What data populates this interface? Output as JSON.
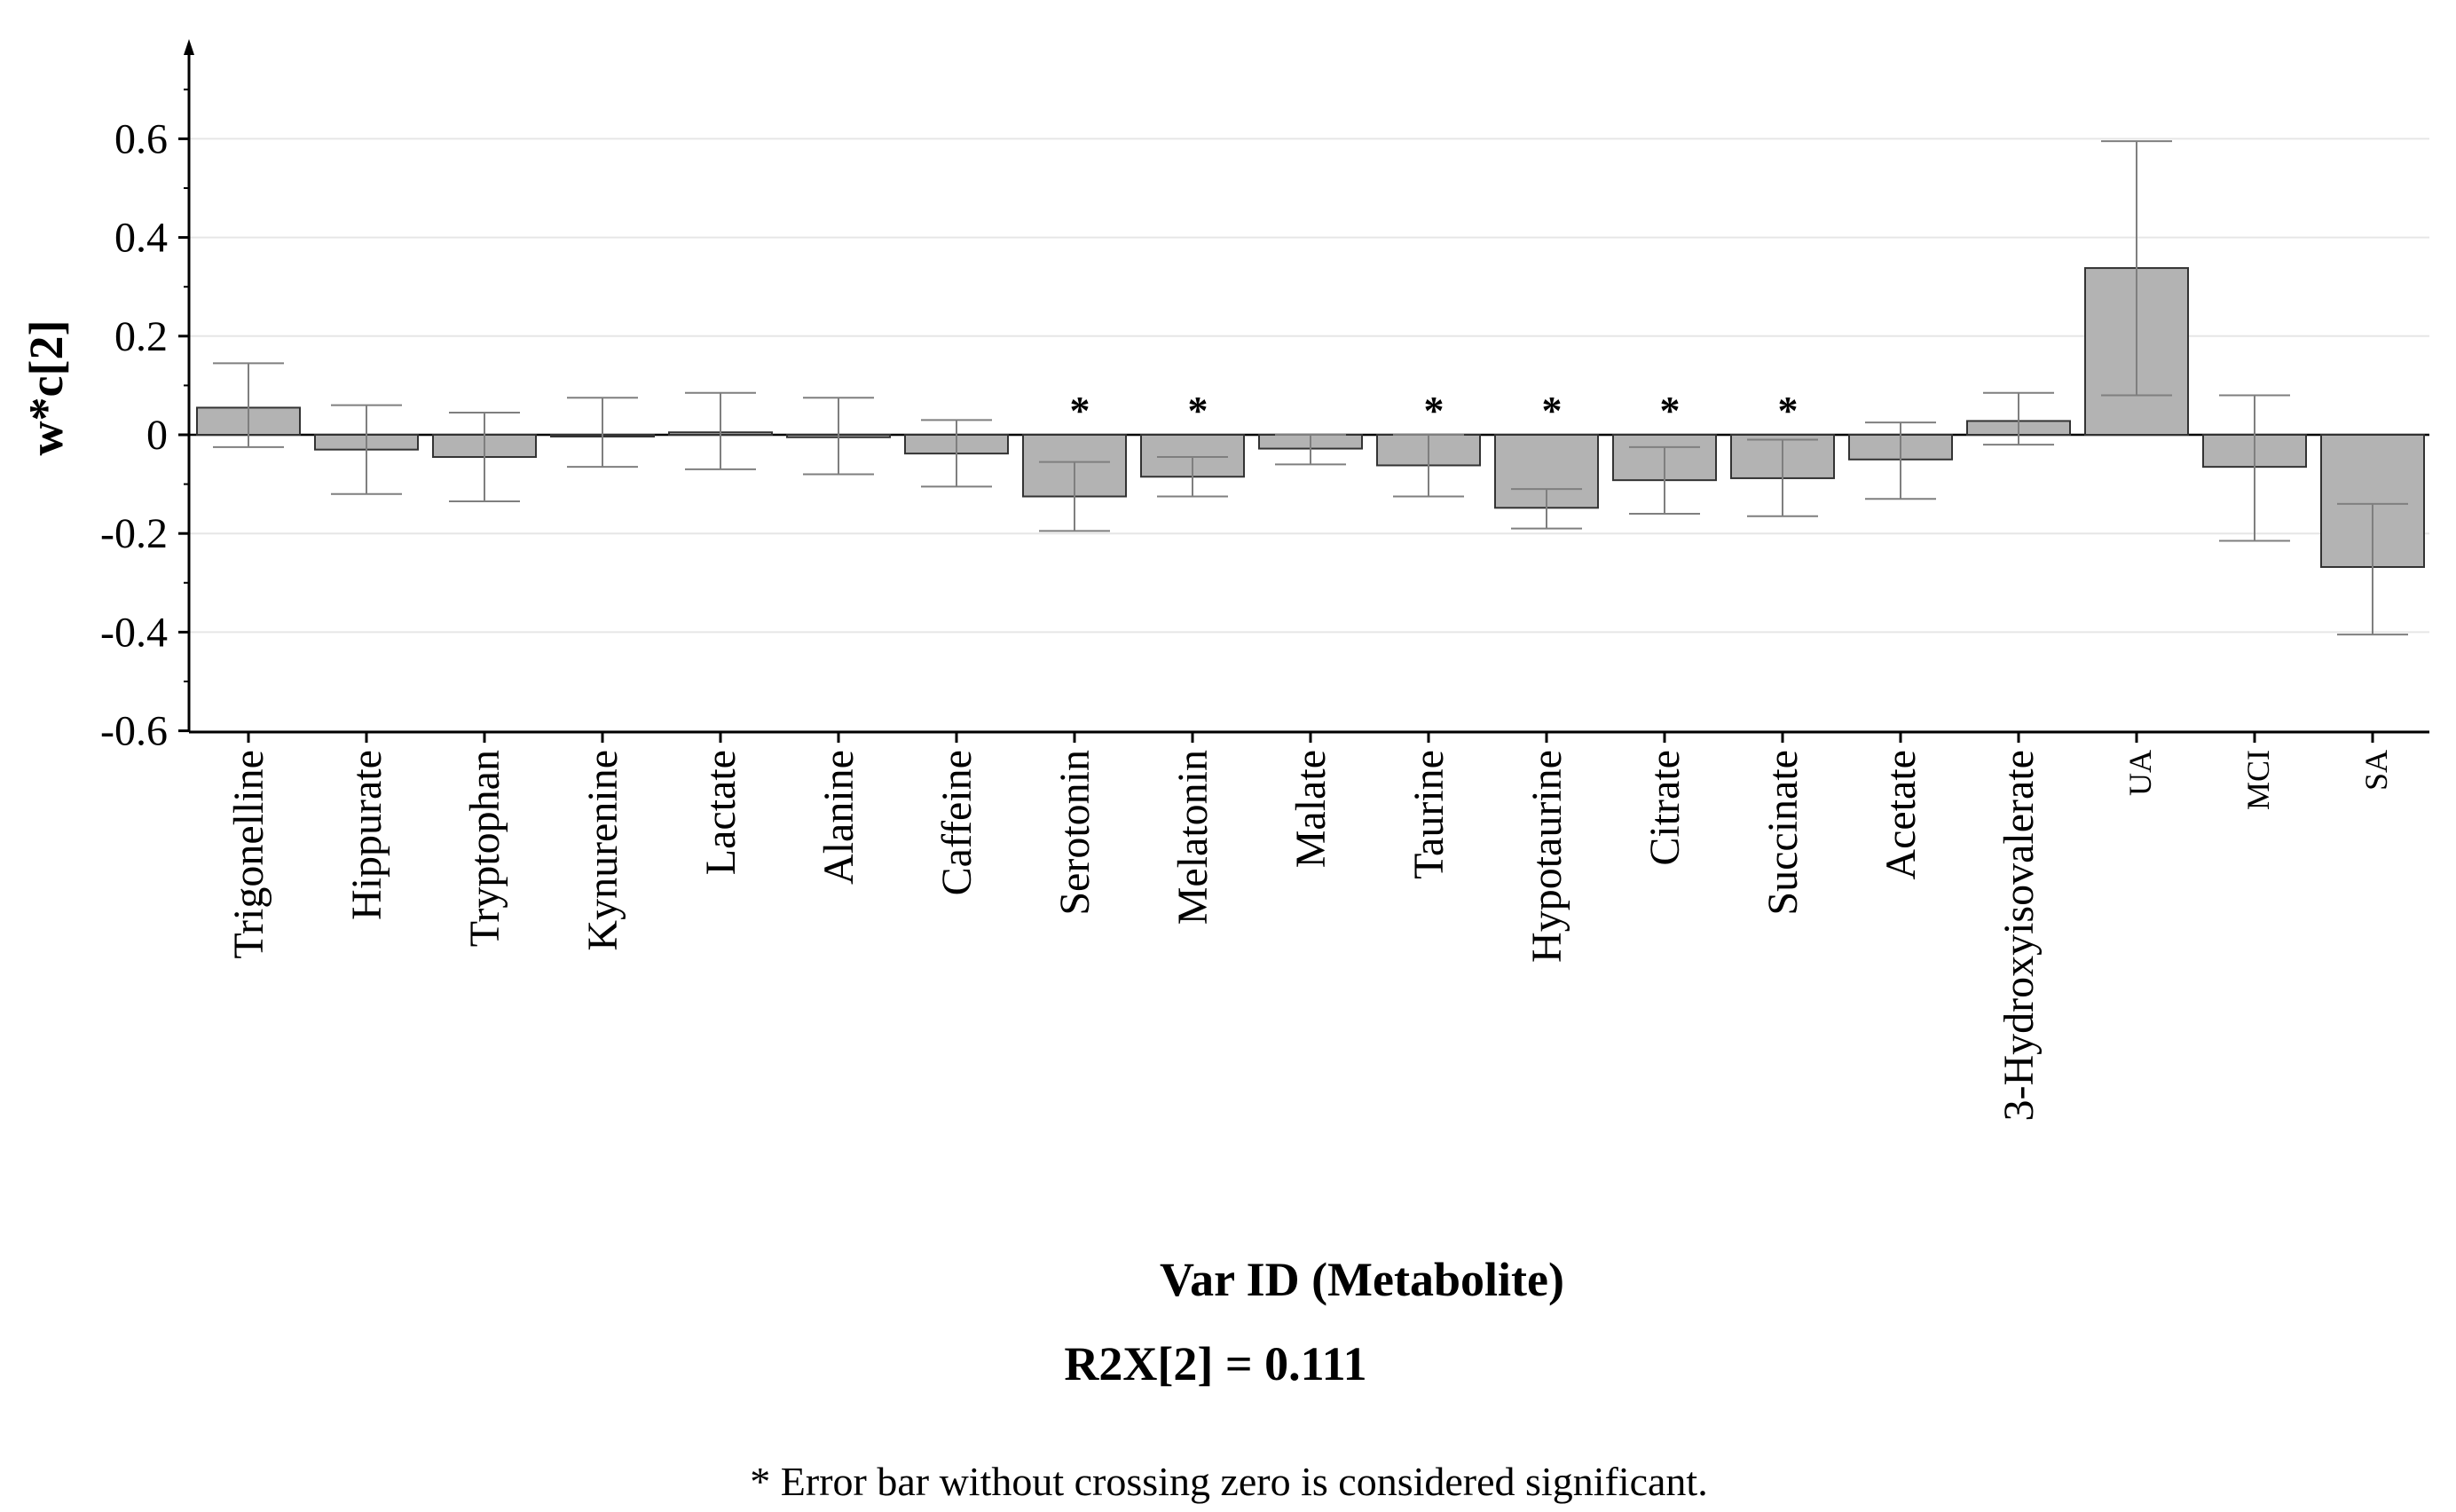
{
  "chart_data": {
    "type": "bar",
    "ylabel": "w*c[2]",
    "xlabel": "Var ID (Metabolite)",
    "subtitle": "R2X[2] = 0.111",
    "footnote": "* Error bar without crossing zero is considered significant.",
    "ylim": [
      -0.6,
      0.75
    ],
    "yticks": [
      0.6,
      0.4,
      0.2,
      0,
      -0.2,
      -0.4,
      -0.6
    ],
    "ytick_labels": [
      "0.6",
      "0.4",
      "0.2",
      "0",
      "-0.2",
      "-0.4",
      "-0.6"
    ],
    "grid": true,
    "significance_marker": "*",
    "categories": [
      "Trigonelline",
      "Hippurate",
      "Tryptophan",
      "Kynurenine",
      "Lactate",
      "Alanine",
      "Caffeine",
      "Serotonin",
      "Melatonin",
      "Malate",
      "Taurine",
      "Hypotaurine",
      "Citrate",
      "Succinate",
      "Acetate",
      "3-Hydroxyisovalerate",
      "UA",
      "MCI",
      "SA"
    ],
    "values": [
      0.055,
      -0.03,
      -0.045,
      0.0,
      0.005,
      -0.005,
      -0.038,
      -0.125,
      -0.085,
      -0.028,
      -0.062,
      -0.148,
      -0.092,
      -0.088,
      -0.05,
      0.028,
      0.338,
      -0.065,
      -0.268
    ],
    "error_low": [
      -0.025,
      -0.12,
      -0.135,
      -0.065,
      -0.07,
      -0.08,
      -0.105,
      -0.195,
      -0.125,
      -0.06,
      -0.125,
      -0.19,
      -0.16,
      -0.165,
      -0.13,
      -0.02,
      0.08,
      -0.215,
      -0.405
    ],
    "error_high": [
      0.145,
      0.06,
      0.045,
      0.075,
      0.085,
      0.075,
      0.03,
      -0.055,
      -0.045,
      0.0,
      0.0,
      -0.11,
      -0.025,
      -0.01,
      0.025,
      0.085,
      0.595,
      0.08,
      -0.14
    ],
    "significant": [
      false,
      false,
      false,
      false,
      false,
      false,
      false,
      true,
      true,
      false,
      true,
      true,
      true,
      true,
      false,
      false,
      false,
      false,
      false
    ],
    "small_label_categories": [
      "UA",
      "MCI",
      "SA"
    ],
    "colors": {
      "bar_fill": "#b3b3b3",
      "bar_stroke": "#333333",
      "error_bar": "#7f7f7f",
      "grid": "#e6e6e6",
      "axis": "#000000",
      "zero_line": "#000000"
    }
  }
}
